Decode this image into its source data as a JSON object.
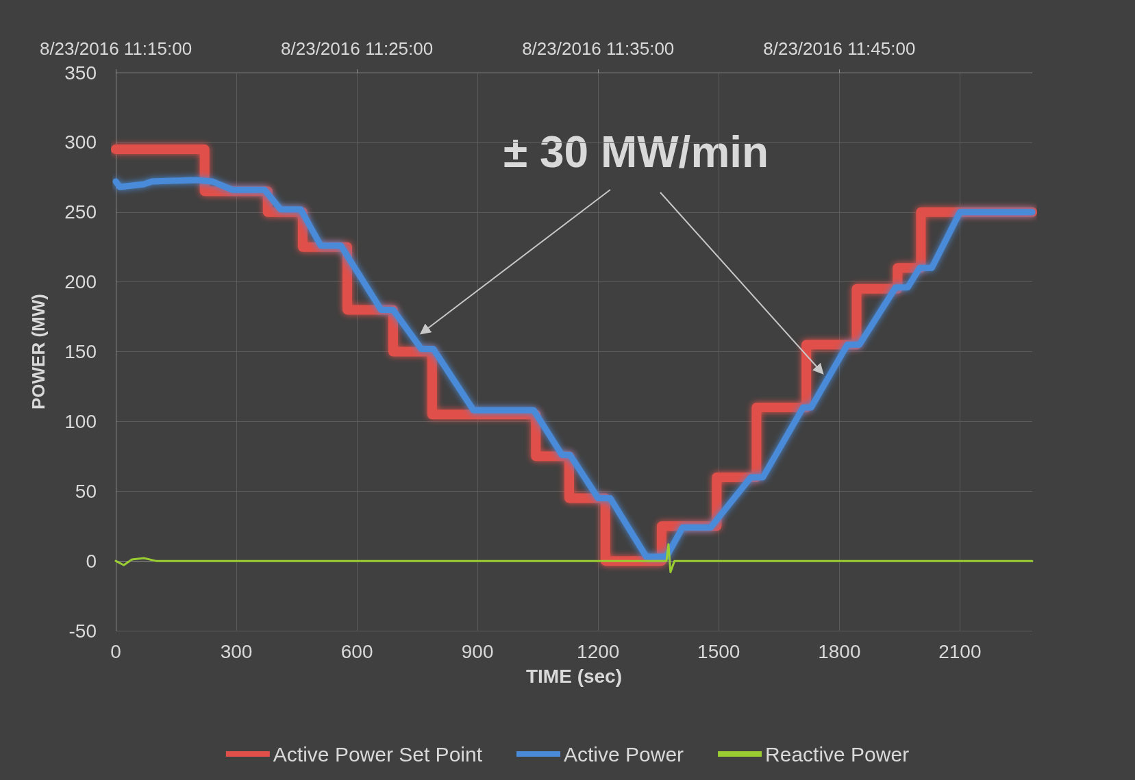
{
  "chart_data": {
    "type": "line",
    "xlabel": "TIME (sec)",
    "ylabel": "POWER (MW)",
    "annotations": [
      "± 30 MW/min"
    ],
    "xlim": [
      0,
      2280
    ],
    "xticks": [
      0,
      300,
      600,
      900,
      1200,
      1500,
      1800,
      2100
    ],
    "ylim": [
      -50,
      350
    ],
    "yticks": [
      -50,
      0,
      50,
      100,
      150,
      200,
      250,
      300,
      350
    ],
    "x2lim": [
      "2016-08-23T11:15",
      "2016-08-23T11:53"
    ],
    "x2ticks": [
      {
        "value": "2016-08-23T11:15",
        "label": "8/23/2016 11:15:00"
      },
      {
        "value": "2016-08-23T11:25",
        "label": "8/23/2016 11:25:00"
      },
      {
        "value": "2016-08-23T11:35",
        "label": "8/23/2016 11:35:00"
      },
      {
        "value": "2016-08-23T11:45",
        "label": "8/23/2016 11:45:00"
      }
    ],
    "grid": true,
    "legend": "bottom",
    "marker": "none",
    "line_style": "solid",
    "series": [
      {
        "name": "Active Power Set Point",
        "type": "step",
        "color": "#e0504a",
        "x": [
          0,
          221,
          378,
          465,
          576,
          690,
          787,
          1045,
          1128,
          1218,
          1358,
          1495,
          1594,
          1718,
          1843,
          1945,
          2003,
          2280
        ],
        "values": [
          295,
          265,
          250,
          225,
          180,
          150,
          105,
          75,
          45,
          0,
          25,
          60,
          110,
          155,
          195,
          210,
          250,
          250
        ]
      },
      {
        "name": "Active Power",
        "color": "#4a8bd9",
        "x": [
          0,
          10,
          70,
          90,
          200,
          240,
          290,
          370,
          410,
          460,
          510,
          560,
          660,
          690,
          760,
          790,
          890,
          1040,
          1110,
          1130,
          1200,
          1230,
          1320,
          1370,
          1410,
          1480,
          1580,
          1610,
          1710,
          1730,
          1820,
          1850,
          1940,
          1970,
          2000,
          2030,
          2100,
          2280
        ],
        "values": [
          272,
          268,
          270,
          272,
          273,
          272,
          266,
          266,
          252,
          252,
          226,
          226,
          180,
          180,
          152,
          152,
          108,
          108,
          76,
          76,
          45,
          45,
          3,
          3,
          24,
          24,
          60,
          60,
          110,
          110,
          155,
          155,
          196,
          196,
          210,
          210,
          250,
          250
        ]
      },
      {
        "name": "Reactive Power",
        "color": "#9acd32",
        "x": [
          0,
          20,
          40,
          70,
          100,
          1370,
          1375,
          1380,
          1390,
          1700,
          2280
        ],
        "values": [
          0,
          -3,
          1,
          2,
          0,
          0,
          12,
          -8,
          0,
          0,
          0
        ]
      }
    ]
  }
}
